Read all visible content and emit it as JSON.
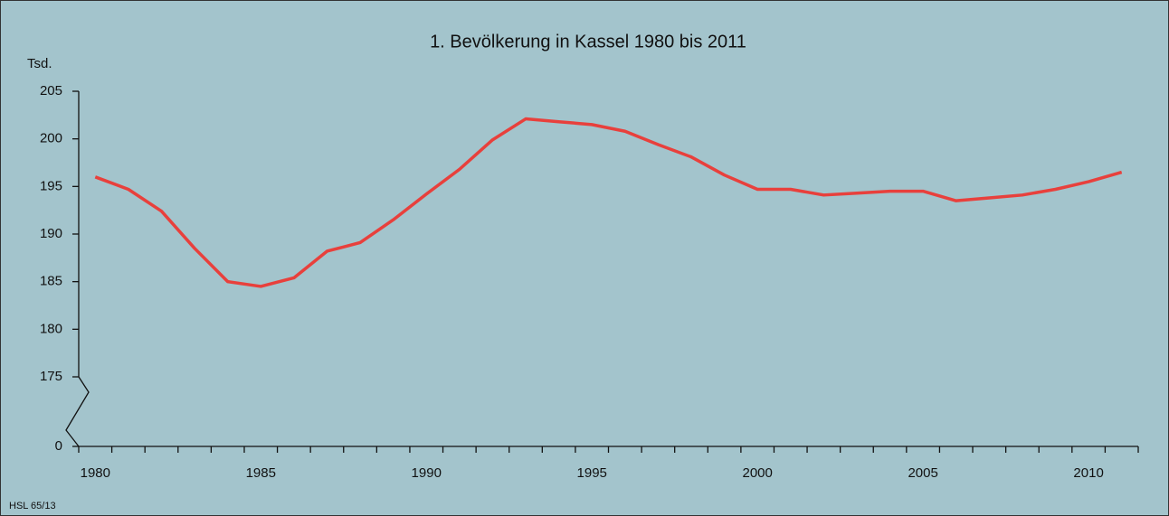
{
  "chart_data": {
    "type": "line",
    "title": "1. Bevölkerung in Kassel 1980 bis 2011",
    "y_unit": "Tsd.",
    "source": "HSL 65/13",
    "x": [
      1980,
      1981,
      1982,
      1983,
      1984,
      1985,
      1986,
      1987,
      1988,
      1989,
      1990,
      1991,
      1992,
      1993,
      1994,
      1995,
      1996,
      1997,
      1998,
      1999,
      2000,
      2001,
      2002,
      2003,
      2004,
      2005,
      2006,
      2007,
      2008,
      2009,
      2010,
      2011
    ],
    "series": [
      {
        "name": "Bevölkerung",
        "color": "#e8403c",
        "values": [
          196.0,
          194.7,
          192.4,
          188.5,
          185.0,
          184.5,
          185.4,
          188.2,
          189.1,
          191.5,
          194.2,
          196.8,
          199.9,
          202.1,
          201.8,
          201.5,
          200.8,
          199.4,
          198.1,
          196.2,
          194.7,
          194.7,
          194.1,
          194.3,
          194.5,
          194.5,
          193.5,
          193.8,
          194.1,
          194.7,
          195.5,
          196.5
        ]
      }
    ],
    "xlim": [
      1979.5,
      2011.5
    ],
    "xticks": [
      1980,
      1985,
      1990,
      1995,
      2000,
      2005,
      2010
    ],
    "ylim": [
      175,
      205
    ],
    "yticks": [
      0,
      175,
      180,
      185,
      190,
      195,
      200,
      205
    ],
    "axis_break": true,
    "legend": false,
    "grid": false
  }
}
